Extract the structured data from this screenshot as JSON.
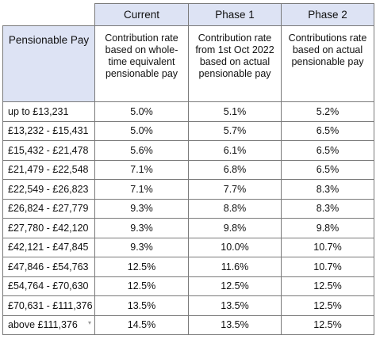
{
  "table": {
    "columns": [
      "Current",
      "Phase 1",
      "Phase 2"
    ],
    "row_header_label": "Pensionable Pay",
    "descriptions": [
      "Contribution rate based on whole-time equivalent pensionable pay",
      "Contribution rate from 1st Oct 2022 based on actual pensionable pay",
      "Contributions rate based on actual pensionable pay"
    ],
    "rows": [
      {
        "band": "up to £13,231",
        "current": "5.0%",
        "phase1": "5.1%",
        "phase2": "5.2%"
      },
      {
        "band": "£13,232 - £15,431",
        "current": "5.0%",
        "phase1": "5.7%",
        "phase2": "6.5%"
      },
      {
        "band": "£15,432 - £21,478",
        "current": "5.6%",
        "phase1": "6.1%",
        "phase2": "6.5%"
      },
      {
        "band": "£21,479 - £22,548",
        "current": "7.1%",
        "phase1": "6.8%",
        "phase2": "6.5%"
      },
      {
        "band": "£22,549 - £26,823",
        "current": "7.1%",
        "phase1": "7.7%",
        "phase2": "8.3%"
      },
      {
        "band": "£26,824 - £27,779",
        "current": "9.3%",
        "phase1": "8.8%",
        "phase2": "8.3%"
      },
      {
        "band": "£27,780 - £42,120",
        "current": "9.3%",
        "phase1": "9.8%",
        "phase2": "9.8%"
      },
      {
        "band": "£42,121 - £47,845",
        "current": "9.3%",
        "phase1": "10.0%",
        "phase2": "10.7%"
      },
      {
        "band": "£47,846 - £54,763",
        "current": "12.5%",
        "phase1": "11.6%",
        "phase2": "10.7%"
      },
      {
        "band": "£54,764 - £70,630",
        "current": "12.5%",
        "phase1": "12.5%",
        "phase2": "12.5%"
      },
      {
        "band": "£70,631 - £111,376",
        "current": "13.5%",
        "phase1": "13.5%",
        "phase2": "12.5%"
      },
      {
        "band": "above £111,376",
        "current": "14.5%",
        "phase1": "13.5%",
        "phase2": "12.5%"
      }
    ]
  },
  "icons": {
    "cell_dropdown": "chevron-down-icon"
  }
}
